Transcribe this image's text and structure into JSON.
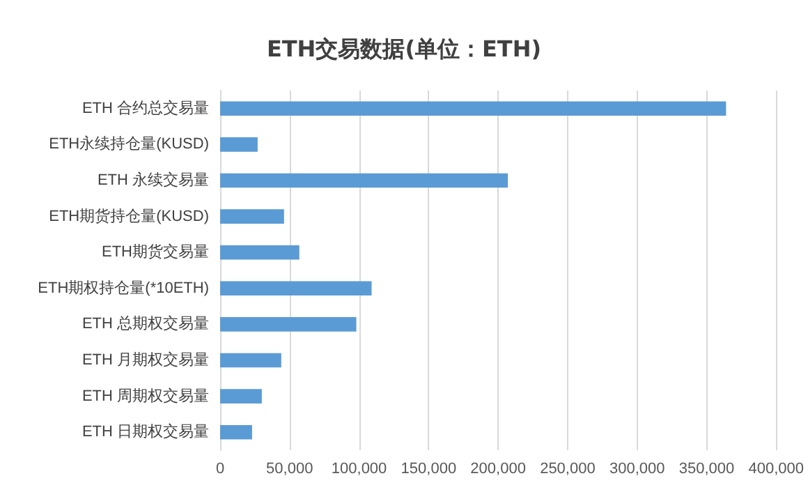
{
  "chart_data": {
    "type": "bar",
    "orientation": "horizontal",
    "title": "ETH交易数据(单位：ETH)",
    "categories": [
      "ETH 合约总交易量",
      "ETH永续持仓量(KUSD)",
      "ETH 永续交易量",
      "ETH期货持仓量(KUSD)",
      "ETH期货交易量",
      "ETH期权持仓量(*10ETH)",
      "ETH 总期权交易量",
      "ETH 月期权交易量",
      "ETH 周期权交易量",
      "ETH 日期权交易量"
    ],
    "values": [
      364000,
      27000,
      207000,
      46000,
      57000,
      109000,
      98000,
      44000,
      30000,
      23000
    ],
    "color": "#5b9bd5",
    "xlim": [
      0,
      400000
    ],
    "xticks": [
      0,
      {
        "value": 50000,
        "label": "50,000"
      },
      {
        "value": 100000,
        "label": "100,000"
      },
      {
        "value": 150000,
        "label": "150,000"
      },
      {
        "value": 200000,
        "label": "200,000"
      },
      {
        "value": 250000,
        "label": "250,000"
      },
      {
        "value": 300000,
        "label": "300,000"
      },
      {
        "value": 350000,
        "label": "350,000"
      },
      {
        "value": 400000,
        "label": "400,000"
      }
    ],
    "grid": "x"
  }
}
